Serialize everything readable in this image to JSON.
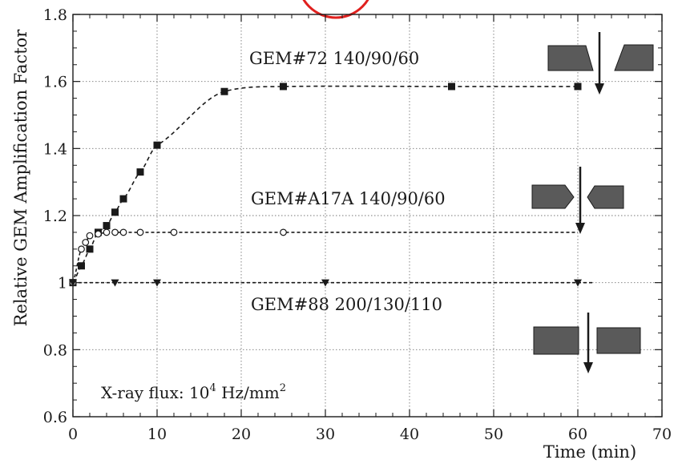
{
  "chart_data": {
    "type": "scatter",
    "xlabel": "Time (min)",
    "ylabel": "Relative GEM Amplification Factor",
    "xlim": [
      0,
      70
    ],
    "ylim": [
      0.6,
      1.8
    ],
    "xticks": [
      0,
      10,
      20,
      30,
      40,
      50,
      60,
      70
    ],
    "yticks": [
      0.6,
      0.8,
      1,
      1.2,
      1.4,
      1.6,
      1.8
    ],
    "xtick_labels": [
      "0",
      "10",
      "20",
      "30",
      "40",
      "50",
      "60",
      "70"
    ],
    "ytick_labels": [
      "0.6",
      "0.8",
      "1",
      "1.2",
      "1.4",
      "1.6",
      "1.8"
    ],
    "grid": true,
    "annotation": {
      "main": "X-ray flux: 10",
      "exponent": "4",
      "unit": " Hz/mm",
      "unit_exponent": "2"
    },
    "series": [
      {
        "name": "GEM#72 140/90/60",
        "marker": "square-filled",
        "x": [
          0,
          1,
          2,
          3,
          4,
          5,
          6,
          8,
          10,
          18,
          25,
          45,
          60
        ],
        "y": [
          1.0,
          1.05,
          1.1,
          1.15,
          1.17,
          1.21,
          1.25,
          1.33,
          1.41,
          1.57,
          1.585,
          1.585,
          1.585
        ],
        "fit_end": 60
      },
      {
        "name": "GEM#A17A 140/90/60",
        "marker": "circle-open",
        "x": [
          0,
          1,
          1.5,
          2,
          3,
          4,
          5,
          6,
          8,
          12,
          25
        ],
        "y": [
          1.0,
          1.1,
          1.12,
          1.14,
          1.145,
          1.15,
          1.15,
          1.15,
          1.15,
          1.15,
          1.15
        ],
        "fit_end": 60
      },
      {
        "name": "GEM#88 200/130/110",
        "marker": "triangle-down-filled",
        "x": [
          0,
          5,
          10,
          30,
          60
        ],
        "y": [
          1.0,
          1.0,
          1.0,
          1.0,
          1.0
        ],
        "fit_end": 62
      }
    ],
    "colors": {
      "ink": "#1a1a1a",
      "hole_fill": "#5a5a5a",
      "grid": "#777777",
      "highlight_circle": "#e0201e"
    },
    "icons": [
      "gem-hole-cross-section-icon",
      "gem-hole-cross-section-icon",
      "gem-hole-cross-section-icon"
    ]
  }
}
